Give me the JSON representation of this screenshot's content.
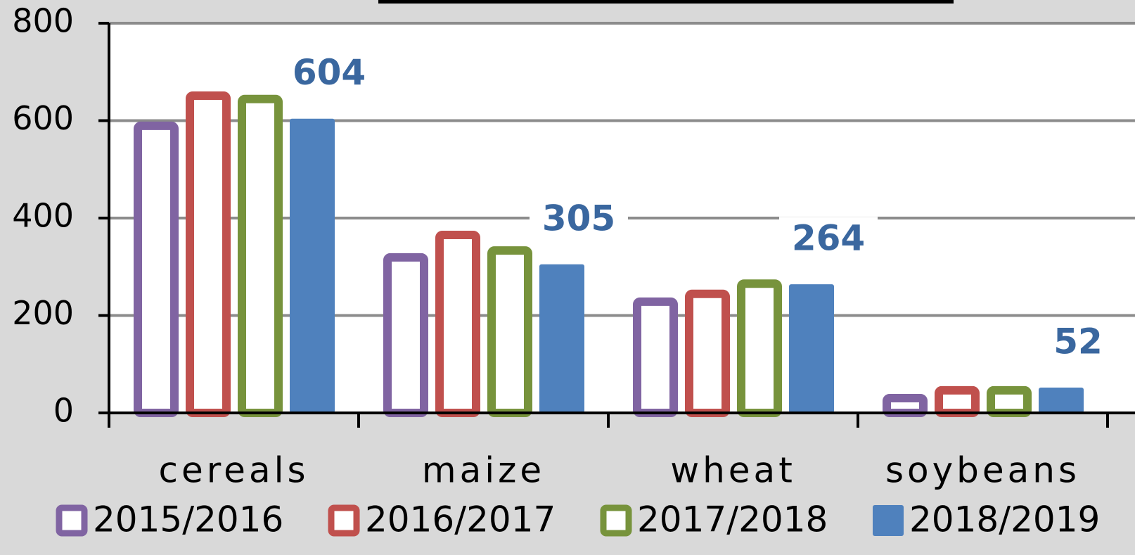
{
  "chart_data": {
    "type": "bar",
    "categories": [
      "cereals",
      "maize",
      "wheat",
      "soybeans"
    ],
    "series": [
      {
        "name": "2015/2016",
        "color": "#8064a2",
        "style": "outline",
        "values": [
          598,
          328,
          237,
          39
        ]
      },
      {
        "name": "2016/2017",
        "color": "#c0504d",
        "style": "outline",
        "values": [
          660,
          374,
          253,
          55
        ]
      },
      {
        "name": "2017/2018",
        "color": "#77933c",
        "style": "outline",
        "values": [
          653,
          342,
          274,
          55
        ]
      },
      {
        "name": "2018/2019",
        "color": "#4f81bd",
        "style": "solid",
        "show_labels": true,
        "values": [
          604,
          305,
          264,
          52
        ]
      }
    ],
    "ylim": [
      0,
      800
    ],
    "yticks": [
      0,
      200,
      400,
      600,
      800
    ],
    "grid": true,
    "legend": "bottom"
  }
}
